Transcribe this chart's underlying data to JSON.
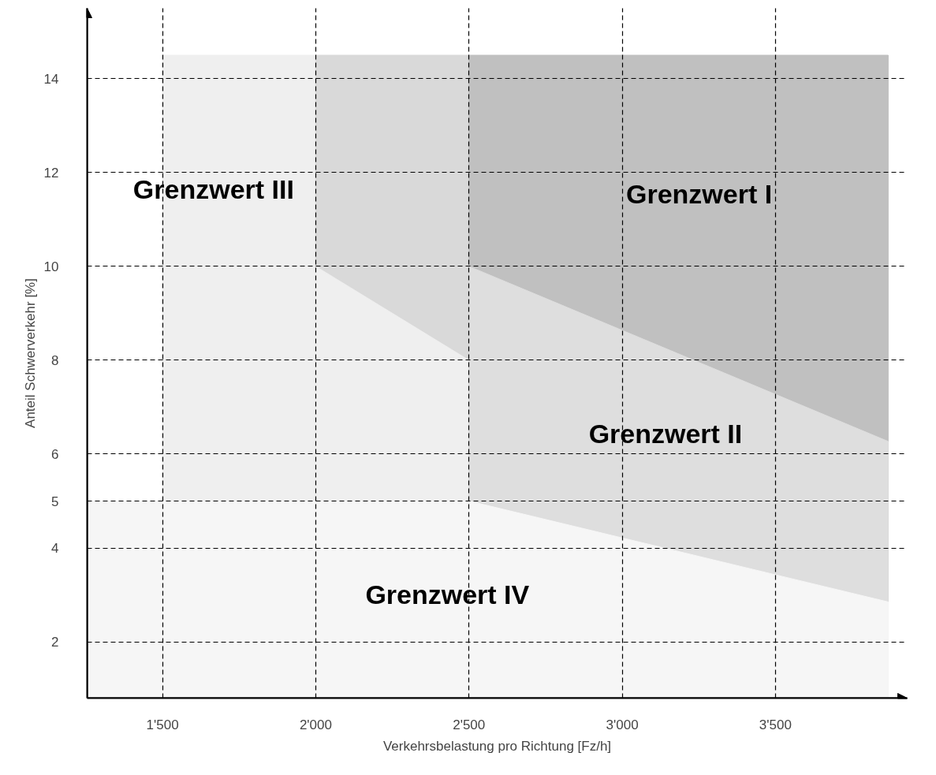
{
  "chart_data": {
    "type": "area",
    "xlabel": "Verkehrsbelastung pro Richtung [Fz/h]",
    "ylabel": "Anteil Schwerverkehr [%]",
    "xlim": [
      1254,
      3930
    ],
    "ylim": [
      0.8,
      15.5
    ],
    "xticks": [
      {
        "value": 1500,
        "label": "1'500"
      },
      {
        "value": 2000,
        "label": "2'000"
      },
      {
        "value": 2500,
        "label": "2'500"
      },
      {
        "value": 3000,
        "label": "3'000"
      },
      {
        "value": 3500,
        "label": "3'500"
      }
    ],
    "yticks": [
      2,
      4,
      5,
      6,
      8,
      10,
      12,
      14
    ],
    "grid": true,
    "line_style": "dashed",
    "series": [
      {
        "name": "Grenzwert III",
        "color": "#efefef",
        "x": [
          1500,
          2000
        ],
        "values": [
          14.5,
          14.5
        ]
      },
      {
        "color": "#d9d9d9",
        "x": [
          2000,
          2500
        ],
        "values": [
          14.5,
          14.5
        ]
      },
      {
        "color": "#efefef",
        "x": [
          2000,
          2500
        ],
        "values": [
          10,
          8
        ]
      },
      {
        "name": "Grenzwert I",
        "color": "#c0c0c0",
        "x": [
          2500,
          3868
        ],
        "values": [
          14.5,
          14.5
        ]
      },
      {
        "name": "Grenzwert II",
        "color": "#dedede",
        "x": [
          2500,
          3868
        ],
        "values": [
          10,
          6.27
        ]
      },
      {
        "name": "Grenzwert IV",
        "color": "#f6f6f6",
        "x": [
          1254,
          2500,
          3868
        ],
        "values": [
          5,
          5,
          2.85
        ]
      }
    ]
  }
}
